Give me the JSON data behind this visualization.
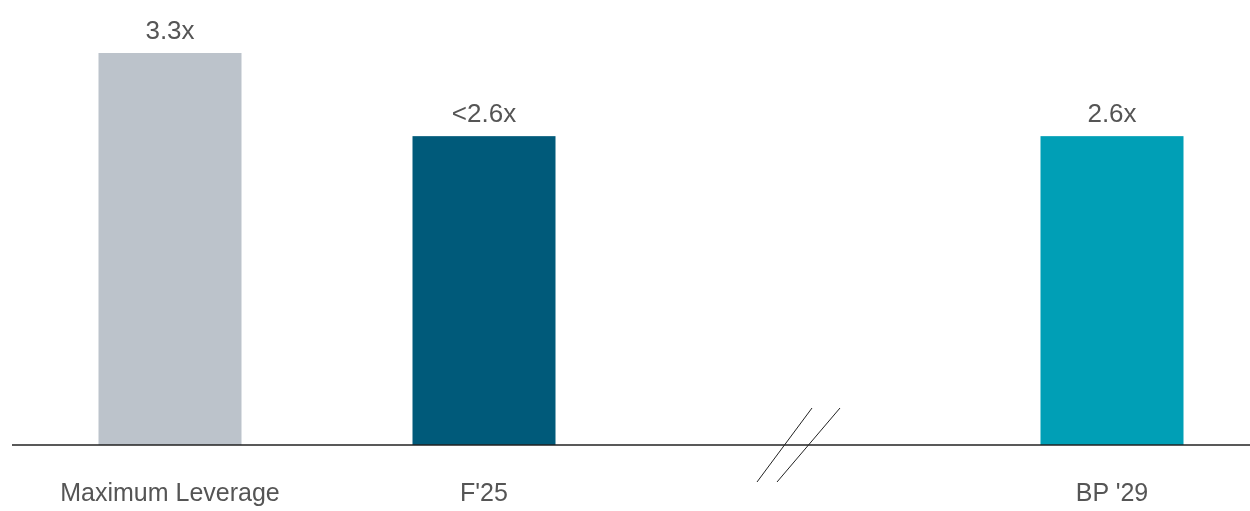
{
  "chart_data": {
    "type": "bar",
    "categories": [
      "Maximum Leverage",
      "F'25",
      null,
      "BP '29"
    ],
    "values": [
      3.3,
      2.6,
      null,
      2.6
    ],
    "colors": [
      "#bcc3cb",
      "#005a7a",
      null,
      "#009fb6"
    ],
    "value_labels": [
      "3.3x",
      "<2.6x",
      null,
      "2.6x"
    ]
  }
}
